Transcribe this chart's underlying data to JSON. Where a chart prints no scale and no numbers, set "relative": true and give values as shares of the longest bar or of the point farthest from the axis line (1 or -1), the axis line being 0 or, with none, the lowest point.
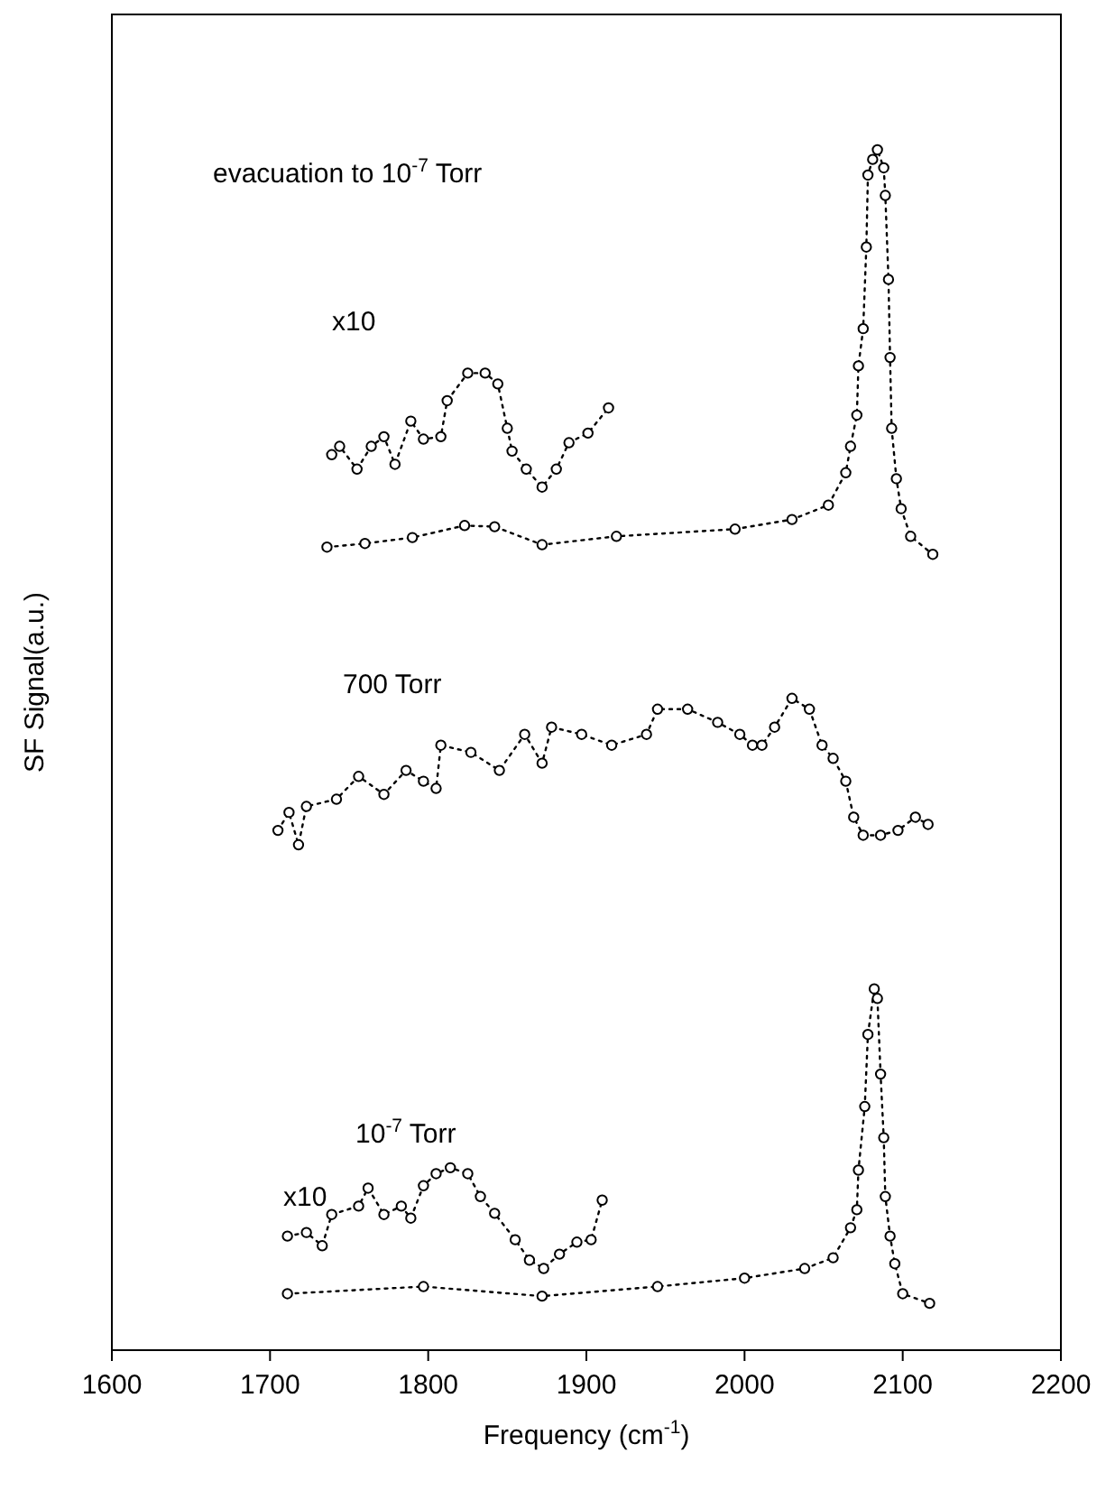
{
  "chart_data": {
    "type": "line",
    "relative": true,
    "xlabel": "Frequency (cm$^{-1}$)",
    "ylabel": "SF Signal(a.u.)",
    "xlim": [
      1600,
      2200
    ],
    "xticks": [
      1600,
      1700,
      1800,
      1900,
      2000,
      2100,
      2200
    ],
    "marker": "circle",
    "line_style": "dotted",
    "grid": false,
    "annotations": [
      "evacuation to 10$^{-7}$ Torr",
      "x10",
      "700 Torr",
      "10$^{-7}$ Torr",
      "x10"
    ],
    "series": [
      {
        "color": "#000000",
        "x": [
          1736,
          1760,
          1790,
          1823,
          1842,
          1872,
          1919,
          1994,
          2030,
          2053,
          2064,
          2067,
          2071,
          2072,
          2075,
          2077,
          2078,
          2081,
          2084,
          2088,
          2089,
          2091,
          2092,
          2093,
          2096,
          2099,
          2105,
          2119
        ],
        "values": [
          0.669,
          0.672,
          0.677,
          0.687,
          0.686,
          0.671,
          0.678,
          0.684,
          0.692,
          0.704,
          0.731,
          0.753,
          0.779,
          0.82,
          0.851,
          0.919,
          0.979,
          0.992,
          1,
          0.985,
          0.962,
          0.892,
          0.827,
          0.768,
          0.726,
          0.701,
          0.678,
          0.663
        ]
      },
      {
        "color": "#000000",
        "x": [
          1739,
          1744,
          1755,
          1764,
          1772,
          1779,
          1789,
          1797,
          1808,
          1812,
          1825,
          1836,
          1844,
          1850,
          1853,
          1862,
          1872,
          1881,
          1889,
          1901,
          1914
        ],
        "values": [
          0.746,
          0.753,
          0.734,
          0.753,
          0.761,
          0.738,
          0.774,
          0.759,
          0.761,
          0.791,
          0.814,
          0.814,
          0.805,
          0.768,
          0.749,
          0.734,
          0.719,
          0.734,
          0.756,
          0.764,
          0.785
        ]
      },
      {
        "color": "#000000",
        "x": [
          1705,
          1712,
          1718,
          1723,
          1742,
          1756,
          1772,
          1786,
          1797,
          1805,
          1808,
          1827,
          1845,
          1861,
          1872,
          1878,
          1897,
          1916,
          1938,
          1945,
          1964,
          1983,
          1997,
          2005,
          2011,
          2019,
          2030,
          2041,
          2049,
          2056,
          2064,
          2069,
          2075,
          2086,
          2097,
          2108,
          2116
        ],
        "values": [
          0.433,
          0.448,
          0.421,
          0.453,
          0.459,
          0.478,
          0.463,
          0.483,
          0.474,
          0.468,
          0.504,
          0.498,
          0.483,
          0.513,
          0.489,
          0.519,
          0.513,
          0.504,
          0.513,
          0.534,
          0.534,
          0.523,
          0.513,
          0.504,
          0.504,
          0.519,
          0.543,
          0.534,
          0.504,
          0.493,
          0.474,
          0.444,
          0.429,
          0.429,
          0.433,
          0.444,
          0.438
        ]
      },
      {
        "color": "#000000",
        "x": [
          1711,
          1797,
          1872,
          1945,
          2000,
          2038,
          2056,
          2067,
          2071,
          2072,
          2076,
          2078,
          2082,
          2084,
          2086,
          2088,
          2089,
          2092,
          2095,
          2100,
          2117
        ],
        "values": [
          0.047,
          0.053,
          0.045,
          0.053,
          0.06,
          0.068,
          0.077,
          0.102,
          0.117,
          0.15,
          0.203,
          0.263,
          0.301,
          0.293,
          0.23,
          0.177,
          0.128,
          0.095,
          0.072,
          0.047,
          0.039
        ]
      },
      {
        "color": "#000000",
        "x": [
          1711,
          1723,
          1733,
          1739,
          1756,
          1762,
          1772,
          1783,
          1789,
          1797,
          1805,
          1814,
          1825,
          1833,
          1842,
          1855,
          1864,
          1873,
          1883,
          1894,
          1903,
          1910
        ],
        "values": [
          0.095,
          0.098,
          0.087,
          0.113,
          0.12,
          0.135,
          0.113,
          0.12,
          0.11,
          0.137,
          0.147,
          0.152,
          0.147,
          0.128,
          0.114,
          0.092,
          0.075,
          0.068,
          0.08,
          0.09,
          0.092,
          0.125
        ]
      }
    ]
  }
}
